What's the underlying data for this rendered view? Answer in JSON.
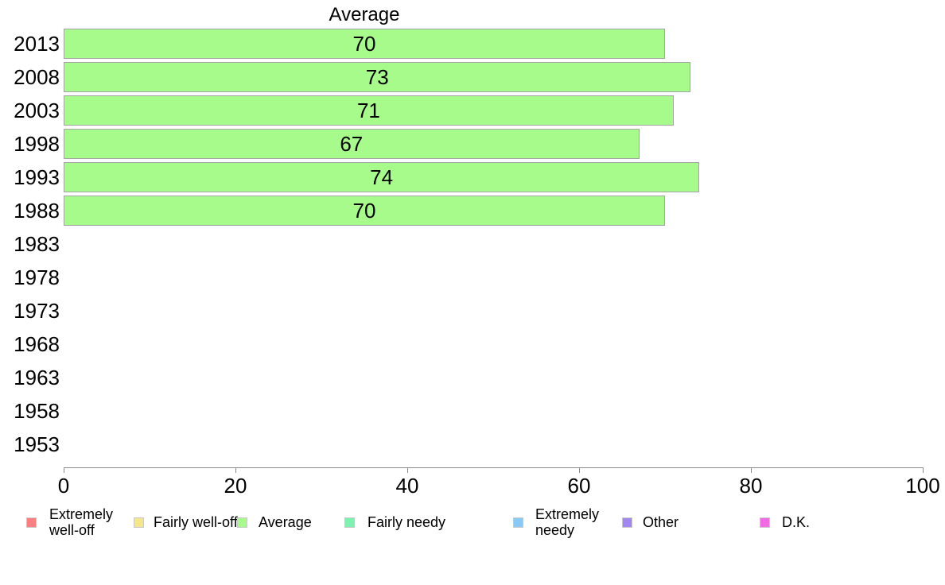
{
  "chart_data": {
    "type": "bar",
    "orientation": "horizontal",
    "title": "Average",
    "categories": [
      "2013",
      "2008",
      "2003",
      "1998",
      "1993",
      "1988",
      "1983",
      "1978",
      "1973",
      "1968",
      "1963",
      "1958",
      "1953"
    ],
    "values": [
      70,
      73,
      71,
      67,
      74,
      70,
      null,
      null,
      null,
      null,
      null,
      null,
      null
    ],
    "xlabel": "",
    "ylabel": "",
    "xlim": [
      0,
      100
    ],
    "x_ticks": [
      0,
      20,
      40,
      60,
      80,
      100
    ],
    "grid": false,
    "value_labels_inside_bars": true,
    "legend_position": "bottom",
    "colors": {
      "bar_fill": "#a6fb8a",
      "bar_border": "#a3a3a3",
      "axis": "#8a8a8a",
      "text": "#000000",
      "swatch_border": "#c9c9c9"
    },
    "legend": [
      {
        "label": "Extremely\nwell-off",
        "color": "#fa8080"
      },
      {
        "label": "Fairly well-off",
        "color": "#f6e68a"
      },
      {
        "label": "Average",
        "color": "#a6fb8a"
      },
      {
        "label": "Fairly needy",
        "color": "#7df2b0"
      },
      {
        "label": "Extremely\nneedy",
        "color": "#88c9f6"
      },
      {
        "label": "Other",
        "color": "#a287f2"
      },
      {
        "label": "D.K.",
        "color": "#f269e4"
      }
    ]
  }
}
